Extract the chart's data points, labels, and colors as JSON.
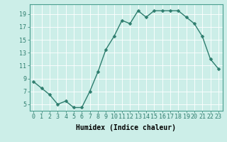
{
  "x": [
    0,
    1,
    2,
    3,
    4,
    5,
    6,
    7,
    8,
    9,
    10,
    11,
    12,
    13,
    14,
    15,
    16,
    17,
    18,
    19,
    20,
    21,
    22,
    23
  ],
  "y": [
    8.5,
    7.5,
    6.5,
    5.0,
    5.5,
    4.5,
    4.5,
    7.0,
    10.0,
    13.5,
    15.5,
    18.0,
    17.5,
    19.5,
    18.5,
    19.5,
    19.5,
    19.5,
    19.5,
    18.5,
    17.5,
    15.5,
    12.0,
    10.5
  ],
  "bg_color": "#cceee8",
  "grid_color": "#ffffff",
  "line_color": "#2e7d6e",
  "marker_color": "#2e7d6e",
  "xlabel": "Humidex (Indice chaleur)",
  "xlim": [
    -0.5,
    23.5
  ],
  "ylim": [
    4,
    20.5
  ],
  "yticks": [
    5,
    7,
    9,
    11,
    13,
    15,
    17,
    19
  ],
  "xticks": [
    0,
    1,
    2,
    3,
    4,
    5,
    6,
    7,
    8,
    9,
    10,
    11,
    12,
    13,
    14,
    15,
    16,
    17,
    18,
    19,
    20,
    21,
    22,
    23
  ],
  "xlabel_fontsize": 7,
  "tick_fontsize": 6,
  "line_width": 1.0,
  "marker_size": 2.5
}
